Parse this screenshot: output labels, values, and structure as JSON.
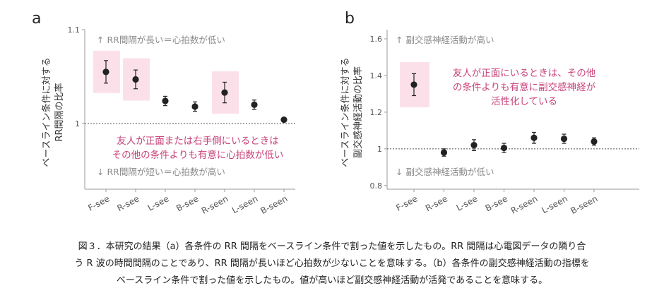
{
  "chart_data": [
    {
      "panel": "a",
      "type": "scatter",
      "ylabel_lines": [
        "ベースライン条件に対する",
        "RR間隔の比率"
      ],
      "categories": [
        "F-see",
        "R-see",
        "L-see",
        "B-see",
        "R-seen",
        "L-seen",
        "B-seen"
      ],
      "values": [
        1.055,
        1.047,
        1.024,
        1.018,
        1.033,
        1.02,
        1.004
      ],
      "errors": [
        0.012,
        0.01,
        0.005,
        0.005,
        0.011,
        0.005,
        0.002
      ],
      "ylim": [
        0.93,
        1.1
      ],
      "yticks": [
        "1",
        "1.1"
      ],
      "reference_line": 1,
      "highlight_categories": [
        "F-see",
        "R-see",
        "R-seen"
      ],
      "annotation_top": "↑ RR間隔が長い＝心拍数が低い",
      "annotation_bottom": "↓ RR間隔が短い＝心拍数が高い",
      "annotation_pink": [
        "友人が正面または右手側にいるときは",
        "その他の条件よりも有意に心拍数が低い"
      ],
      "grid": false
    },
    {
      "panel": "b",
      "type": "scatter",
      "ylabel_lines": [
        "ベースライン条件に対する",
        "副交感神経活動の比率"
      ],
      "categories": [
        "F-see",
        "R-see",
        "L-see",
        "B-see",
        "R-seen",
        "L-seen",
        "B-seen"
      ],
      "values": [
        1.35,
        0.98,
        1.02,
        1.005,
        1.06,
        1.055,
        1.04
      ],
      "errors": [
        0.06,
        0.02,
        0.03,
        0.025,
        0.03,
        0.025,
        0.02
      ],
      "ylim": [
        0.78,
        1.65
      ],
      "yticks": [
        "0.8",
        "1",
        "1.2",
        "1.4",
        "1.6"
      ],
      "reference_line": 1,
      "highlight_categories": [
        "F-see"
      ],
      "annotation_top": "↑ 副交感神経活動が高い",
      "annotation_bottom": "↓ 副交感神経活動が低い",
      "annotation_pink": [
        "友人が正面にいるときは、その他",
        "の条件よりも有意に副交感神経が",
        "活性化している"
      ],
      "grid": false
    }
  ],
  "caption_lines": [
    "図３．本研究の結果（a）各条件の RR 間隔をベースライン条件で割った値を示したもの。RR 間隔は心電図データの隣り合",
    "う R 波の時間間隔のことであり、RR 間隔が長いほど心拍数が少ないことを意味する。（b）各条件の副交感神経活動の指標を",
    "ベースライン条件で割った値を示したもの。値が高いほど副交感神経活動が活発であることを意味する。"
  ],
  "colors": {
    "highlight": "#fbe0ea",
    "pink_text": "#c8437a",
    "point": "#222222",
    "axis": "#999999"
  }
}
